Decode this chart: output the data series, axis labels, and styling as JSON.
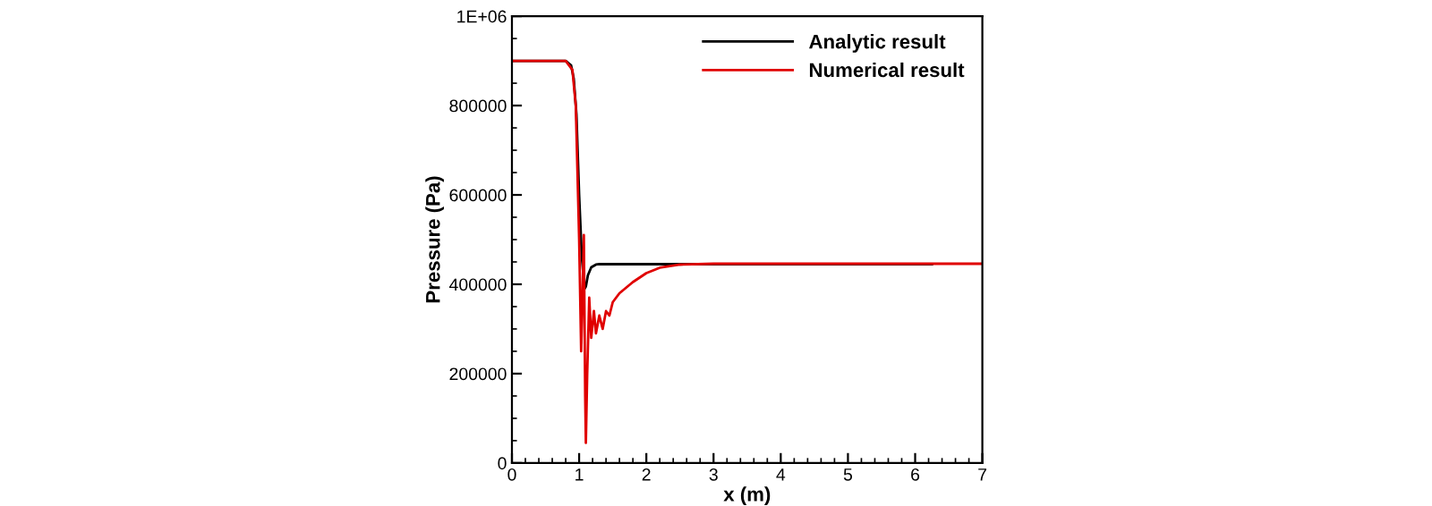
{
  "chart_data": {
    "type": "line",
    "xlabel": "x (m)",
    "ylabel": "Pressure (Pa)",
    "xlim": [
      0,
      7
    ],
    "ylim": [
      0,
      1000000
    ],
    "xticks": [
      0,
      1,
      2,
      3,
      4,
      5,
      6,
      7
    ],
    "yticks": [
      0,
      200000,
      400000,
      600000,
      800000,
      {
        "value": 1000000,
        "label": "1E+06"
      }
    ],
    "grid": false,
    "legend": "top right",
    "marker": "none",
    "line_style": "solid",
    "series": [
      {
        "name": "Analytic result",
        "color": "#000000",
        "x": [
          0,
          0.8,
          0.88,
          0.92,
          0.96,
          1.0,
          1.04,
          1.08,
          1.1,
          1.13,
          1.18,
          1.25,
          1.3,
          6.25
        ],
        "values": [
          900000,
          900000,
          890000,
          860000,
          780000,
          600000,
          460000,
          390000,
          395000,
          420000,
          438000,
          444000,
          445000,
          445000
        ]
      },
      {
        "name": "Numerical result",
        "color": "#e00000",
        "x": [
          0,
          0.8,
          0.9,
          0.95,
          1.0,
          1.03,
          1.05,
          1.07,
          1.09,
          1.1,
          1.12,
          1.15,
          1.18,
          1.22,
          1.25,
          1.3,
          1.35,
          1.4,
          1.45,
          1.5,
          1.55,
          1.6,
          1.8,
          2.0,
          2.2,
          2.5,
          3.0,
          7.0
        ],
        "values": [
          900000,
          900000,
          880000,
          800000,
          500000,
          250000,
          380000,
          510000,
          150000,
          45000,
          200000,
          370000,
          280000,
          340000,
          290000,
          330000,
          300000,
          340000,
          330000,
          360000,
          370000,
          380000,
          405000,
          425000,
          437000,
          444000,
          446000,
          446000
        ]
      }
    ]
  }
}
